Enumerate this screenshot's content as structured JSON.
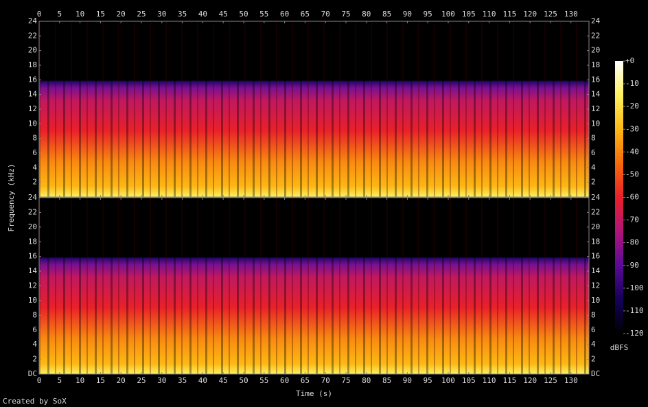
{
  "chart_data": [
    {
      "type": "spectrogram",
      "xlabel": "Time (s)",
      "ylabel": "Frequency (kHz)",
      "xlim": [
        0,
        134.4
      ],
      "ylim": [
        0,
        24
      ],
      "xticks": [
        0,
        5,
        10,
        15,
        20,
        25,
        30,
        35,
        40,
        45,
        50,
        55,
        60,
        65,
        70,
        75,
        80,
        85,
        90,
        95,
        100,
        105,
        110,
        115,
        120,
        125,
        130
      ],
      "yticks": [
        2,
        4,
        6,
        8,
        10,
        12,
        14,
        16,
        18,
        20,
        22,
        24
      ]
    },
    {
      "type": "spectrogram",
      "xlim": [
        0,
        134.4
      ],
      "ylim": [
        0,
        24
      ],
      "xticks": [
        0,
        5,
        10,
        15,
        20,
        25,
        30,
        35,
        40,
        45,
        50,
        55,
        60,
        65,
        70,
        75,
        80,
        85,
        90,
        95,
        100,
        105,
        110,
        115,
        120,
        125,
        130
      ],
      "yticks": [
        {
          "value": 0,
          "label": "DC"
        },
        2,
        4,
        6,
        8,
        10,
        12,
        14,
        16,
        18,
        20,
        22,
        24
      ]
    },
    {
      "type": "colorbar",
      "title": "dBFS",
      "ylim": [
        -120,
        0
      ],
      "yticks": [
        {
          "value": 0,
          "label": "+0"
        },
        -10,
        -20,
        -30,
        -40,
        -50,
        -60,
        -70,
        -80,
        -90,
        -100,
        -110,
        -120
      ],
      "colors": [
        "#000000",
        "#15005a",
        "#5a0a96",
        "#b0147a",
        "#e8202a",
        "#f86a08",
        "#fcb814",
        "#fdf060",
        "#ffffff"
      ]
    }
  ],
  "footer": "Created by SoX"
}
